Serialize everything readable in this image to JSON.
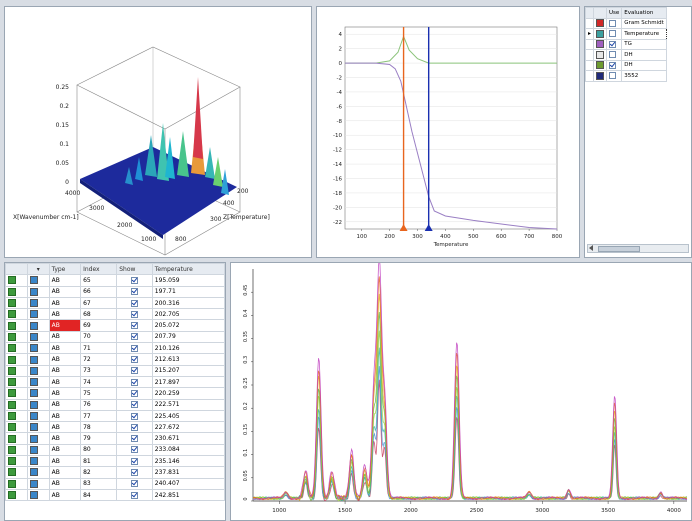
{
  "surface3d": {
    "z_ticks": [
      "0.25",
      "0.2",
      "0.15",
      "0.1",
      "0.05",
      "0"
    ],
    "x_ticks": [
      "4000",
      "3000",
      "2000",
      "1000"
    ],
    "x_label": "X[Wavenumber cm-1]",
    "y_ticks": [
      "300",
      "400",
      "200"
    ],
    "y_label": "Z[Temperature]",
    "y_extra_tick": "800"
  },
  "chart_data": [
    {
      "type": "line",
      "xlabel": "Temperature",
      "x_ticks": [
        "100",
        "200",
        "300",
        "400",
        "500",
        "600",
        "700",
        "800"
      ],
      "y_ticks": [
        "4",
        "2",
        "0",
        "-2",
        "-4",
        "-6",
        "-8",
        "-10",
        "-12",
        "-14",
        "-16",
        "-18",
        "-20",
        "-22"
      ],
      "xlim": [
        40,
        800
      ],
      "ylim": [
        -23,
        5
      ],
      "markers": [
        {
          "x": 250,
          "color": "#e8651e"
        },
        {
          "x": 340,
          "color": "#1a2fb0"
        }
      ],
      "series": [
        {
          "color": "#8bc37a",
          "x": [
            40,
            150,
            200,
            230,
            250,
            270,
            300,
            340,
            400,
            500,
            600,
            700,
            800
          ],
          "y": [
            0,
            0,
            0.3,
            1.5,
            3.7,
            1.8,
            0.6,
            0,
            0,
            0,
            0,
            0,
            0
          ]
        },
        {
          "color": "#9a7fc4",
          "x": [
            40,
            150,
            200,
            220,
            240,
            260,
            280,
            300,
            320,
            340,
            360,
            400,
            500,
            600,
            700,
            800
          ],
          "y": [
            0,
            0,
            -0.2,
            -0.8,
            -2.5,
            -6,
            -9.5,
            -12.5,
            -15.5,
            -18.5,
            -20.5,
            -21.2,
            -21.8,
            -22.3,
            -22.8,
            -23
          ]
        }
      ]
    },
    {
      "type": "line",
      "x_ticks": [
        "1000",
        "1500",
        "2000",
        "2500",
        "3000",
        "3500",
        "4000"
      ],
      "y_ticks": [
        "0.45",
        "0.4",
        "0.35",
        "0.3",
        "0.25",
        "0.2",
        "0.15",
        "0.1",
        "0.05",
        "0"
      ],
      "xlim": [
        800,
        4100
      ],
      "ylim": [
        0,
        0.5
      ],
      "peaks": [
        {
          "x": 1050,
          "h": 0.012
        },
        {
          "x": 1200,
          "h": 0.05
        },
        {
          "x": 1300,
          "h": 0.26
        },
        {
          "x": 1400,
          "h": 0.05
        },
        {
          "x": 1550,
          "h": 0.09
        },
        {
          "x": 1650,
          "h": 0.06
        },
        {
          "x": 1720,
          "h": 0.2
        },
        {
          "x": 1760,
          "h": 0.42
        },
        {
          "x": 1800,
          "h": 0.18
        },
        {
          "x": 2350,
          "h": 0.29
        },
        {
          "x": 2900,
          "h": 0.012
        },
        {
          "x": 3200,
          "h": 0.018
        },
        {
          "x": 3550,
          "h": 0.19
        },
        {
          "x": 3900,
          "h": 0.012
        }
      ],
      "series_colors": [
        "#c83a5a",
        "#4e8fd6",
        "#38b0b0",
        "#9bd13a",
        "#5ab54a",
        "#e0b020",
        "#e86020",
        "#c040c0"
      ]
    }
  ],
  "legend": {
    "headers": [
      "Use",
      "Evaluation"
    ],
    "rows": [
      {
        "color": "#d12828",
        "checked": false,
        "label": "Gram Schmidt"
      },
      {
        "color": "#3aa0a0",
        "checked": false,
        "label": "Temperature",
        "selected": true
      },
      {
        "color": "#9f5fbf",
        "checked": true,
        "label": "TG"
      },
      {
        "color": "#e7e7e7",
        "checked": false,
        "label": "DH"
      },
      {
        "color": "#6d9b30",
        "checked": true,
        "label": "DH"
      },
      {
        "color": "#1f2a7a",
        "checked": false,
        "label": "3552"
      }
    ]
  },
  "table": {
    "headers": [
      "",
      "Type",
      "Index",
      "Show",
      "Temperature"
    ],
    "rows": [
      {
        "type": "AB",
        "index": "65",
        "temp": "195.059"
      },
      {
        "type": "AB",
        "index": "66",
        "temp": "197.71"
      },
      {
        "type": "AB",
        "index": "67",
        "temp": "200.316"
      },
      {
        "type": "AB",
        "index": "68",
        "temp": "202.705"
      },
      {
        "type": "AB",
        "index": "69",
        "temp": "205.072",
        "highlight": true
      },
      {
        "type": "AB",
        "index": "70",
        "temp": "207.79"
      },
      {
        "type": "AB",
        "index": "71",
        "temp": "210.126"
      },
      {
        "type": "AB",
        "index": "72",
        "temp": "212.613"
      },
      {
        "type": "AB",
        "index": "73",
        "temp": "215.207"
      },
      {
        "type": "AB",
        "index": "74",
        "temp": "217.897"
      },
      {
        "type": "AB",
        "index": "75",
        "temp": "220.259"
      },
      {
        "type": "AB",
        "index": "76",
        "temp": "222.571"
      },
      {
        "type": "AB",
        "index": "77",
        "temp": "225.405"
      },
      {
        "type": "AB",
        "index": "78",
        "temp": "227.672"
      },
      {
        "type": "AB",
        "index": "79",
        "temp": "230.671"
      },
      {
        "type": "AB",
        "index": "80",
        "temp": "233.084"
      },
      {
        "type": "AB",
        "index": "81",
        "temp": "235.146"
      },
      {
        "type": "AB",
        "index": "82",
        "temp": "237.831"
      },
      {
        "type": "AB",
        "index": "83",
        "temp": "240.407"
      },
      {
        "type": "AB",
        "index": "84",
        "temp": "242.851"
      }
    ]
  },
  "colors": {
    "row_swatch": "#3a86c8",
    "highlight": "#e12424"
  }
}
